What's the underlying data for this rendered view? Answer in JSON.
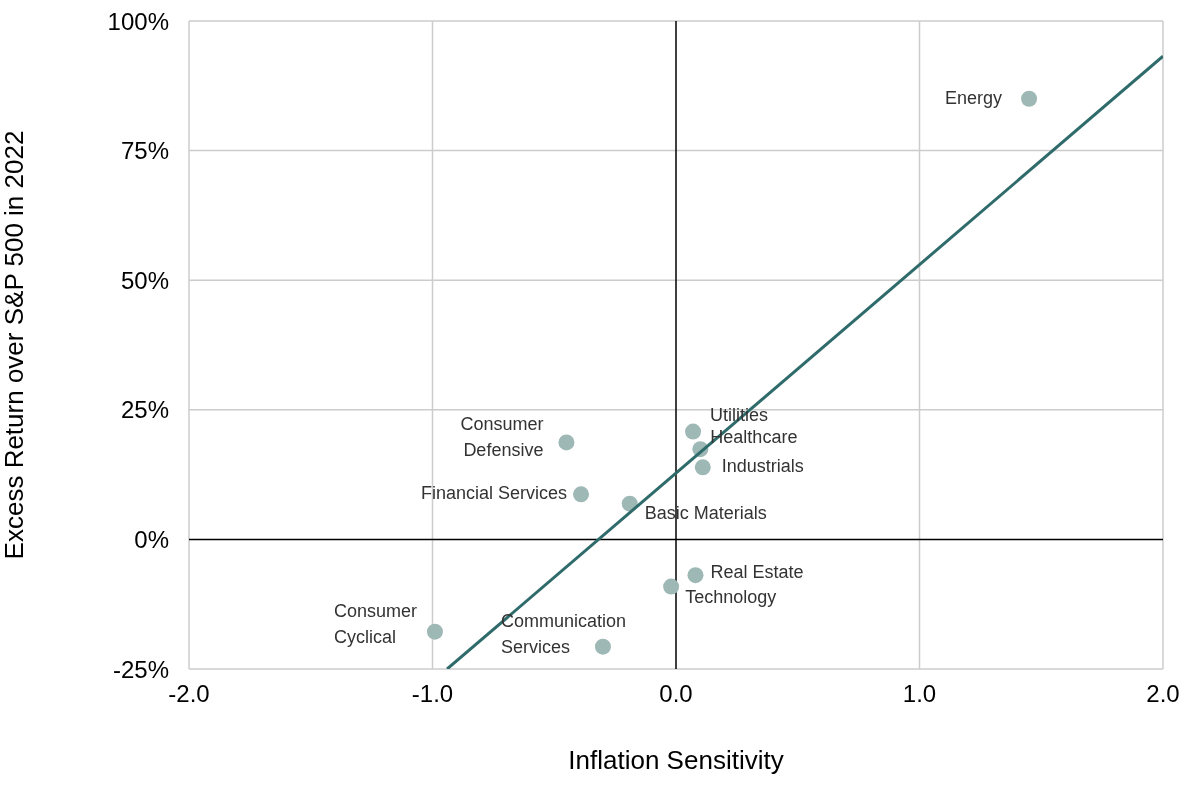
{
  "chart_data": {
    "type": "scatter",
    "xlabel": "Inflation Sensitivity",
    "ylabel": "Excess Return over S&P 500 in 2022",
    "xlim": [
      -2,
      2
    ],
    "xticks": [
      {
        "value": -2,
        "label": "-2.0"
      },
      {
        "value": -1,
        "label": "-1.0"
      },
      {
        "value": 0,
        "label": "0.0"
      },
      {
        "value": 1,
        "label": "1.0"
      },
      {
        "value": 2,
        "label": "2.0"
      }
    ],
    "ylim": [
      -25,
      100
    ],
    "yticks": [
      {
        "value": -25,
        "label": "-25%"
      },
      {
        "value": 0,
        "label": "0%"
      },
      {
        "value": 25,
        "label": "25%"
      },
      {
        "value": 50,
        "label": "50%"
      },
      {
        "value": 75,
        "label": "75%"
      },
      {
        "value": 100,
        "label": "100%"
      }
    ],
    "grid": true,
    "legend": false,
    "marker": "circle",
    "series": [
      {
        "type": "scatter",
        "color": "#9db8b5",
        "x": [
          1.45,
          0.07,
          0.1,
          0.11,
          -0.45,
          -0.39,
          -0.19,
          0.08,
          -0.02,
          -0.99,
          -0.3
        ],
        "values": [
          85,
          20.8,
          17.4,
          13.9,
          18.7,
          8.7,
          6.9,
          -6.9,
          -9.1,
          -17.8,
          -20.7
        ]
      },
      {
        "type": "line",
        "color": "#2f6b6b",
        "marker": "none",
        "x": [
          -0.94,
          2
        ],
        "values": [
          -25,
          93.2
        ]
      }
    ],
    "annotations": [
      {
        "text": "Energy",
        "x": 1.45,
        "y": 85
      },
      {
        "text": "Utilities",
        "x": 0.07,
        "y": 20.8
      },
      {
        "text": "Healthcare",
        "x": 0.1,
        "y": 17.4
      },
      {
        "text": "Industrials",
        "x": 0.11,
        "y": 13.9
      },
      {
        "text": "Consumer Defensive",
        "x": -0.45,
        "y": 18.7
      },
      {
        "text": "Financial Services",
        "x": -0.39,
        "y": 8.7
      },
      {
        "text": "Basic Materials",
        "x": -0.19,
        "y": 6.9
      },
      {
        "text": "Real Estate",
        "x": 0.08,
        "y": -6.9
      },
      {
        "text": "Technology",
        "x": -0.02,
        "y": -9.1
      },
      {
        "text": "Consumer Cyclical",
        "x": -0.99,
        "y": -17.8
      },
      {
        "text": "Communication Services",
        "x": -0.3,
        "y": -20.7
      }
    ]
  }
}
